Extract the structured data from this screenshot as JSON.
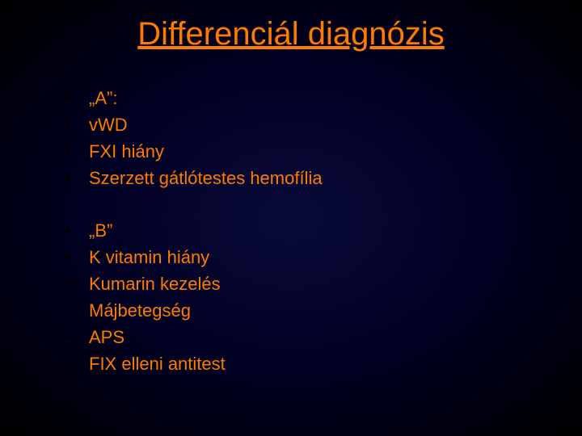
{
  "slide": {
    "title": "Differenciál diagnózis",
    "colors": {
      "text": "#ff7b00",
      "bullet": "#000000",
      "background_center": "#0a0a3a",
      "background_edge": "#000000"
    },
    "typography": {
      "title_fontsize": 40,
      "body_fontsize": 22,
      "font_family": "Arial"
    },
    "groups": [
      {
        "items": [
          "„A”:",
          "vWD",
          "FXI hiány",
          "Szerzett gátlótestes hemofília"
        ]
      },
      {
        "items": [
          "„B”",
          "K vitamin hiány",
          "Kumarin kezelés",
          "Májbetegség",
          "APS",
          "FIX elleni antitest"
        ]
      }
    ]
  }
}
